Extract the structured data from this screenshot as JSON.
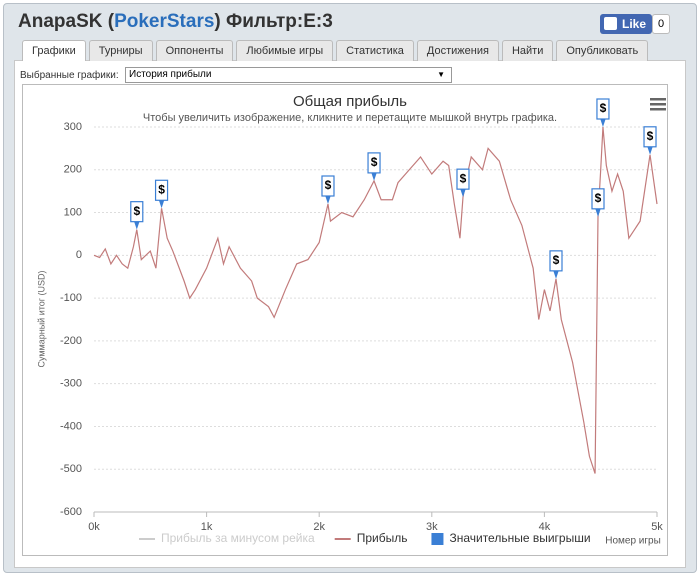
{
  "header": {
    "title": [
      "AnapaSK (",
      "PokerStars",
      ") Фильтр:E:3"
    ],
    "like": "Like",
    "like_count": "0"
  },
  "tabs": [
    "Графики",
    "Турниры",
    "Оппоненты",
    "Любимые игры",
    "Статистика",
    "Достижения",
    "Найти",
    "Опубликовать"
  ],
  "filter": {
    "label": "Выбранные графики:",
    "selected": "История прибыли"
  },
  "chart_data": {
    "type": "line",
    "title": "Общая прибыль",
    "subtitle": "Чтобы увеличить изображение, кликните и перетащите мышкой внутрь графика.",
    "x_label": "Номер игры",
    "y_label": "Суммарный итог (USD)",
    "x": [
      0,
      50,
      100,
      150,
      200,
      250,
      300,
      350,
      380,
      420,
      500,
      550,
      600,
      650,
      700,
      800,
      850,
      900,
      1000,
      1100,
      1150,
      1200,
      1300,
      1400,
      1450,
      1550,
      1600,
      1700,
      1800,
      1900,
      2000,
      2078,
      2100,
      2200,
      2300,
      2400,
      2487,
      2550,
      2650,
      2700,
      2800,
      2900,
      3000,
      3100,
      3150,
      3200,
      3250,
      3277,
      3300,
      3350,
      3450,
      3500,
      3600,
      3700,
      3800,
      3900,
      3950,
      4000,
      4050,
      4103,
      4150,
      4250,
      4350,
      4400,
      4450,
      4476,
      4500,
      4520,
      4550,
      4600,
      4650,
      4700,
      4750,
      4800,
      4850,
      4938,
      5000
    ],
    "series": [
      {
        "name": "Прибыль за минусом рейка",
        "color": "#cccccc",
        "visible": false,
        "values": [
          null,
          null,
          null,
          null,
          null,
          null,
          null,
          null,
          null,
          null,
          null,
          null,
          null,
          null,
          null,
          null,
          null,
          null,
          null,
          null,
          null,
          null,
          null,
          null,
          null,
          null,
          null,
          null,
          null,
          null,
          null,
          null,
          null,
          null,
          null,
          null,
          null,
          null,
          null,
          null,
          null,
          null,
          null,
          null,
          null,
          null,
          null,
          null,
          null,
          null,
          null,
          null,
          null,
          null,
          null,
          null,
          null,
          null,
          null,
          null,
          null,
          null,
          null,
          null,
          null,
          null,
          null,
          null,
          null,
          null,
          null,
          null,
          null,
          null,
          null,
          null,
          null
        ]
      },
      {
        "name": "Прибыль",
        "color": "#c27b7b",
        "visible": true,
        "values": [
          0,
          -5,
          15,
          -20,
          0,
          -20,
          -30,
          20,
          60,
          -10,
          10,
          -30,
          110,
          40,
          10,
          -60,
          -100,
          -80,
          -30,
          40,
          -20,
          20,
          -30,
          -60,
          -100,
          -120,
          -145,
          -80,
          -20,
          -10,
          30,
          120,
          80,
          100,
          90,
          130,
          174,
          130,
          130,
          170,
          200,
          230,
          190,
          220,
          210,
          120,
          40,
          136,
          170,
          230,
          200,
          250,
          220,
          130,
          70,
          -30,
          -150,
          -80,
          -130,
          -55,
          -150,
          -250,
          -390,
          -470,
          -510,
          90,
          200,
          300,
          210,
          150,
          190,
          150,
          40,
          60,
          80,
          235,
          120
        ]
      },
      {
        "name": "Значительные выигрыши",
        "color": "#3a7fd5",
        "type": "scatter",
        "marker_symbol": "$",
        "x": [
          380,
          600,
          2078,
          2487,
          3277,
          4103,
          4476,
          4520,
          4938
        ],
        "values": [
          60,
          110,
          120,
          174,
          136,
          -55,
          90,
          300,
          235
        ]
      }
    ],
    "xlim": [
      0,
      5000
    ],
    "xticks": [
      {
        "value": 0,
        "label": "0k"
      },
      {
        "value": 1000,
        "label": "1k"
      },
      {
        "value": 2000,
        "label": "2k"
      },
      {
        "value": 3000,
        "label": "3k"
      },
      {
        "value": 4000,
        "label": "4k"
      },
      {
        "value": 5000,
        "label": "5k"
      }
    ],
    "ylim": [
      -600,
      300
    ],
    "yticks": [
      -600,
      -500,
      -400,
      -300,
      -200,
      -100,
      0,
      100,
      200,
      300
    ],
    "grid": true
  }
}
